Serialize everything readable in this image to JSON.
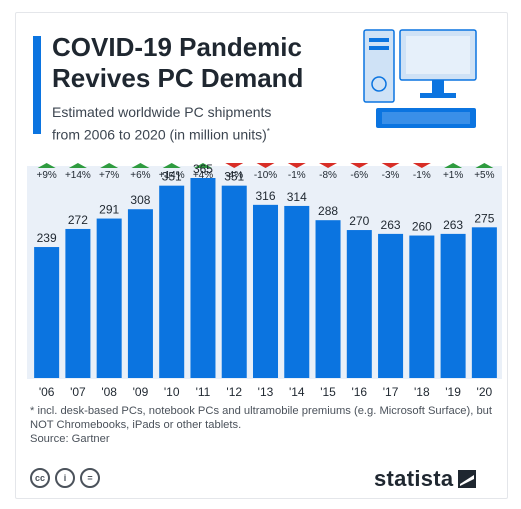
{
  "header": {
    "title_line1": "COVID-19 Pandemic",
    "title_line2": "Revives PC Demand",
    "subtitle_line1": "Estimated worldwide PC shipments",
    "subtitle_line2": "from 2006 to 2020 (in million units)",
    "subtitle_mark": "*"
  },
  "chart_data": {
    "type": "bar",
    "title": "COVID-19 Pandemic Revives PC Demand",
    "subtitle": "Estimated worldwide PC shipments from 2006 to 2020 (in million units)*",
    "categories": [
      "'06",
      "'07",
      "'08",
      "'09",
      "'10",
      "'11",
      "'12",
      "'13",
      "'14",
      "'15",
      "'16",
      "'17",
      "'18",
      "'19",
      "'20"
    ],
    "values": [
      239,
      272,
      291,
      308,
      351,
      365,
      351,
      316,
      314,
      288,
      270,
      263,
      260,
      263,
      275
    ],
    "changes": [
      "+9%",
      "+14%",
      "+7%",
      "+6%",
      "+14%",
      "+4%",
      "-4%",
      "-10%",
      "-1%",
      "-8%",
      "-6%",
      "-3%",
      "-1%",
      "+1%",
      "+5%"
    ],
    "ylim": [
      0,
      365
    ],
    "grid": true,
    "colors": {
      "bar": "#0b74e0",
      "up": "#2e9b3f",
      "down": "#d82d26",
      "band": "#eaf0f8"
    }
  },
  "footer": {
    "footnote": "* incl. desk-based PCs, notebook PCs and ultramobile premiums (e.g. Microsoft Surface), but NOT Chromebooks, iPads or other tablets.",
    "source": "Source: Gartner",
    "cc_icons": [
      "cc",
      "i",
      "="
    ],
    "brand": "statista"
  }
}
